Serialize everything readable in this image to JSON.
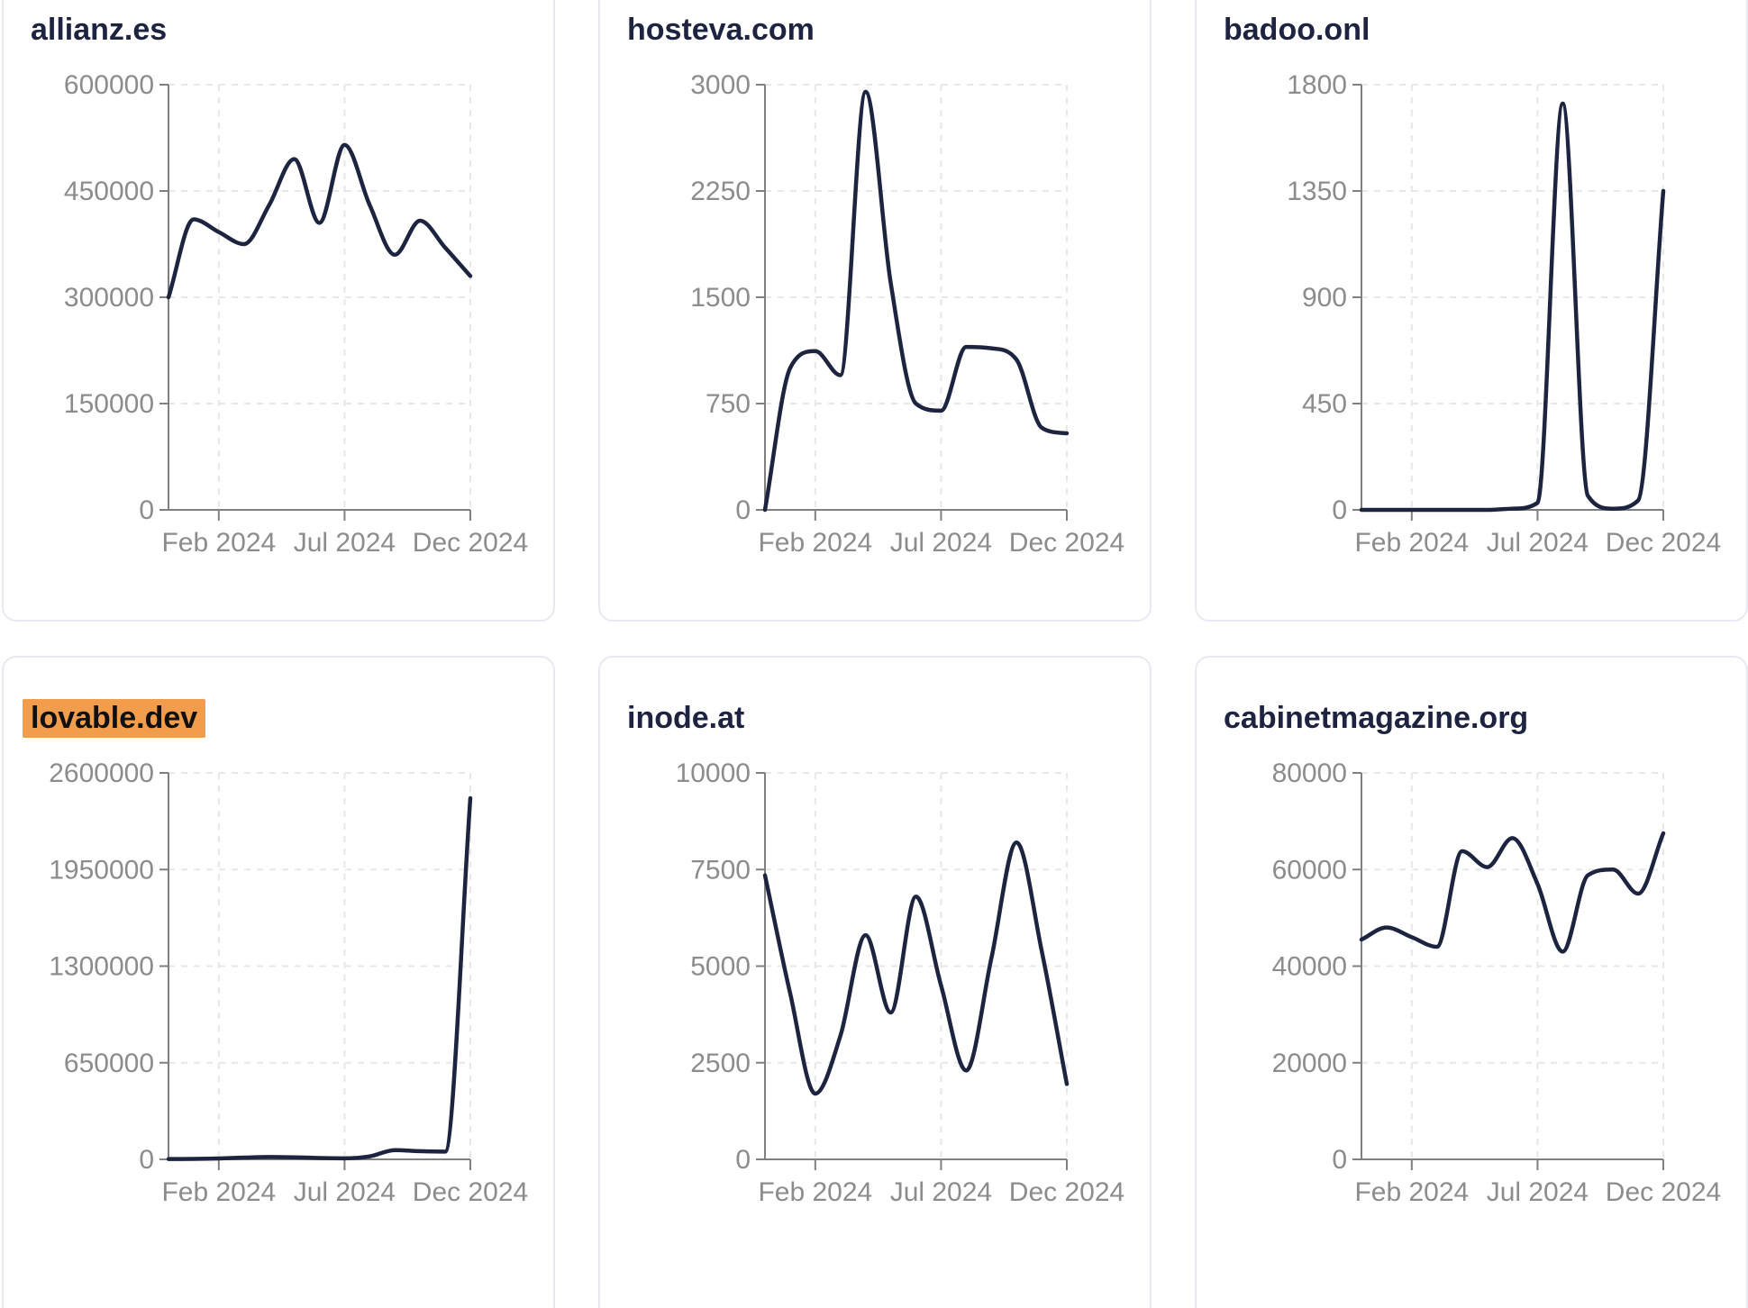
{
  "style": {
    "line_color": "#1d2440",
    "axis_color": "#808080",
    "tick_label_color": "#8c8c8c",
    "grid_color": "#e7e7e7",
    "title_color": "#1d2340",
    "highlight_color": "#f19d4b",
    "card_border_color": "#e7eaf2",
    "card_background": "#ffffff",
    "page_background": "#ffffff"
  },
  "chart_data": [
    {
      "type": "line",
      "title": "allianz.es",
      "highlighted": false,
      "x": [
        "Dec 2023",
        "Jan 2024",
        "Feb 2024",
        "Mar 2024",
        "Apr 2024",
        "May 2024",
        "Jun 2024",
        "Jul 2024",
        "Aug 2024",
        "Sep 2024",
        "Oct 2024",
        "Nov 2024",
        "Dec 2024"
      ],
      "values": [
        300000,
        410000,
        392000,
        375000,
        430000,
        495000,
        405000,
        515000,
        430000,
        360000,
        408000,
        370000,
        330000
      ],
      "xtick_labels": [
        "Feb 2024",
        "Jul 2024",
        "Dec 2024"
      ],
      "ytick_values": [
        0,
        150000,
        300000,
        450000,
        600000
      ],
      "ylim": [
        0,
        600000
      ],
      "xlabel": "",
      "ylabel": "",
      "grid": "dashed",
      "legend": "none"
    },
    {
      "type": "line",
      "title": "hosteva.com",
      "highlighted": false,
      "x": [
        "Dec 2023",
        "Jan 2024",
        "Feb 2024",
        "Mar 2024",
        "Apr 2024",
        "May 2024",
        "Jun 2024",
        "Jul 2024",
        "Aug 2024",
        "Sep 2024",
        "Oct 2024",
        "Nov 2024",
        "Dec 2024"
      ],
      "values": [
        0,
        1000,
        1120,
        950,
        2950,
        1600,
        750,
        700,
        1150,
        1140,
        1060,
        580,
        540
      ],
      "xtick_labels": [
        "Feb 2024",
        "Jul 2024",
        "Dec 2024"
      ],
      "ytick_values": [
        0,
        750,
        1500,
        2250,
        3000
      ],
      "ylim": [
        0,
        3000
      ],
      "xlabel": "",
      "ylabel": "",
      "grid": "dashed",
      "legend": "none"
    },
    {
      "type": "line",
      "title": "badoo.onl",
      "highlighted": false,
      "x": [
        "Dec 2023",
        "Jan 2024",
        "Feb 2024",
        "Mar 2024",
        "Apr 2024",
        "May 2024",
        "Jun 2024",
        "Jul 2024",
        "Aug 2024",
        "Sep 2024",
        "Oct 2024",
        "Nov 2024",
        "Dec 2024"
      ],
      "values": [
        0,
        0,
        0,
        0,
        0,
        0,
        5,
        30,
        1720,
        60,
        5,
        40,
        1350
      ],
      "xtick_labels": [
        "Feb 2024",
        "Jul 2024",
        "Dec 2024"
      ],
      "ytick_values": [
        0,
        450,
        900,
        1350,
        1800
      ],
      "ylim": [
        0,
        1800
      ],
      "xlabel": "",
      "ylabel": "",
      "grid": "dashed",
      "legend": "none"
    },
    {
      "type": "line",
      "title": "lovable.dev",
      "highlighted": true,
      "x": [
        "Dec 2023",
        "Jan 2024",
        "Feb 2024",
        "Mar 2024",
        "Apr 2024",
        "May 2024",
        "Jun 2024",
        "Jul 2024",
        "Aug 2024",
        "Sep 2024",
        "Oct 2024",
        "Nov 2024",
        "Dec 2024"
      ],
      "values": [
        2000,
        3000,
        6000,
        12000,
        16000,
        14000,
        9000,
        7000,
        20000,
        62000,
        55000,
        52000,
        2430000
      ],
      "xtick_labels": [
        "Feb 2024",
        "Jul 2024",
        "Dec 2024"
      ],
      "ytick_values": [
        0,
        650000,
        1300000,
        1950000,
        2600000
      ],
      "ylim": [
        0,
        2600000
      ],
      "xlabel": "",
      "ylabel": "",
      "grid": "dashed",
      "legend": "none"
    },
    {
      "type": "line",
      "title": "inode.at",
      "highlighted": false,
      "x": [
        "Dec 2023",
        "Jan 2024",
        "Feb 2024",
        "Mar 2024",
        "Apr 2024",
        "May 2024",
        "Jun 2024",
        "Jul 2024",
        "Aug 2024",
        "Sep 2024",
        "Oct 2024",
        "Nov 2024",
        "Dec 2024"
      ],
      "values": [
        7350,
        4300,
        1700,
        3200,
        5800,
        3800,
        6800,
        4500,
        2300,
        5200,
        8200,
        5400,
        1950
      ],
      "xtick_labels": [
        "Feb 2024",
        "Jul 2024",
        "Dec 2024"
      ],
      "ytick_values": [
        0,
        2500,
        5000,
        7500,
        10000
      ],
      "ylim": [
        0,
        10000
      ],
      "xlabel": "",
      "ylabel": "",
      "grid": "dashed",
      "legend": "none"
    },
    {
      "type": "line",
      "title": "cabinetmagazine.org",
      "highlighted": false,
      "x": [
        "Dec 2023",
        "Jan 2024",
        "Feb 2024",
        "Mar 2024",
        "Apr 2024",
        "May 2024",
        "Jun 2024",
        "Jul 2024",
        "Aug 2024",
        "Sep 2024",
        "Oct 2024",
        "Nov 2024",
        "Dec 2024"
      ],
      "values": [
        45500,
        48000,
        46000,
        44000,
        63800,
        60500,
        66500,
        57000,
        43000,
        58800,
        60000,
        55000,
        67500
      ],
      "xtick_labels": [
        "Feb 2024",
        "Jul 2024",
        "Dec 2024"
      ],
      "ytick_values": [
        0,
        20000,
        40000,
        60000,
        80000
      ],
      "ylim": [
        0,
        80000
      ],
      "xlabel": "",
      "ylabel": "",
      "grid": "dashed",
      "legend": "none"
    }
  ]
}
